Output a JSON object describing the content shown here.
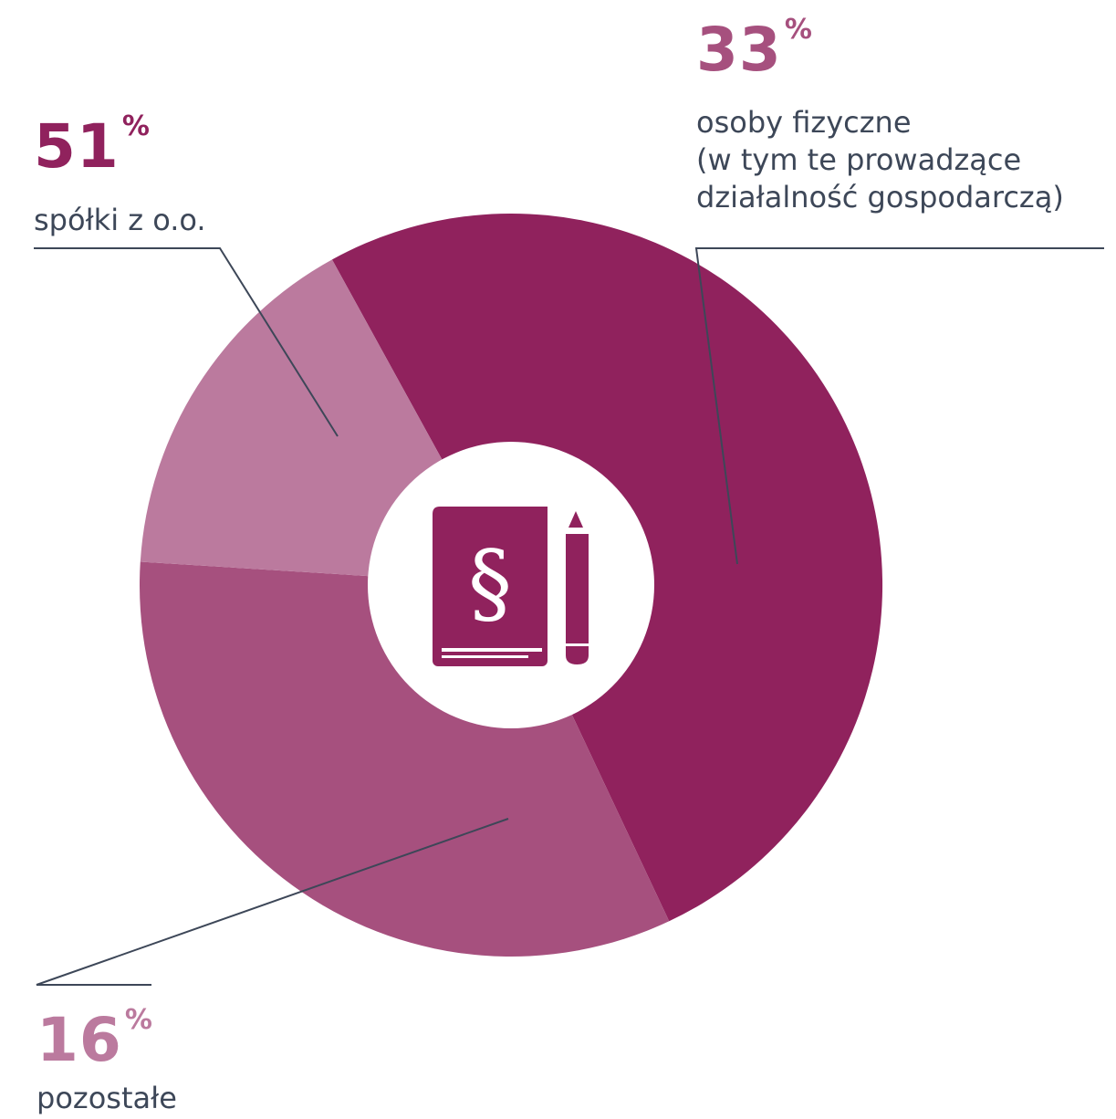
{
  "colors": {
    "slice_primary": "#90225d",
    "slice_secondary": "#a6507e",
    "slice_tertiary": "#bb7a9e",
    "leader_line": "#3d4758",
    "label_text": "#3d4758",
    "background": "#ffffff"
  },
  "center_icon": {
    "name": "law-book-paragraph-pencil-icon",
    "book_color": "#90225d",
    "glyph": "§"
  },
  "chart_data": {
    "type": "pie",
    "donut": true,
    "title": "",
    "start_angle_deg": 331.2,
    "direction": "clockwise",
    "slices": [
      {
        "key": "spolki",
        "label_lines": [
          "spółki z o.o."
        ],
        "value": 51,
        "value_text": "51",
        "unit": "%",
        "color": "#90225d"
      },
      {
        "key": "osoby",
        "label_lines": [
          "osoby fizyczne",
          "(w tym te prowadzące",
          "działalność gospodarczą)"
        ],
        "value": 33,
        "value_text": "33",
        "unit": "%",
        "color": "#a6507e"
      },
      {
        "key": "pozostale",
        "label_lines": [
          "pozostałe"
        ],
        "value": 16,
        "value_text": "16",
        "unit": "%",
        "color": "#bb7a9e"
      }
    ]
  }
}
